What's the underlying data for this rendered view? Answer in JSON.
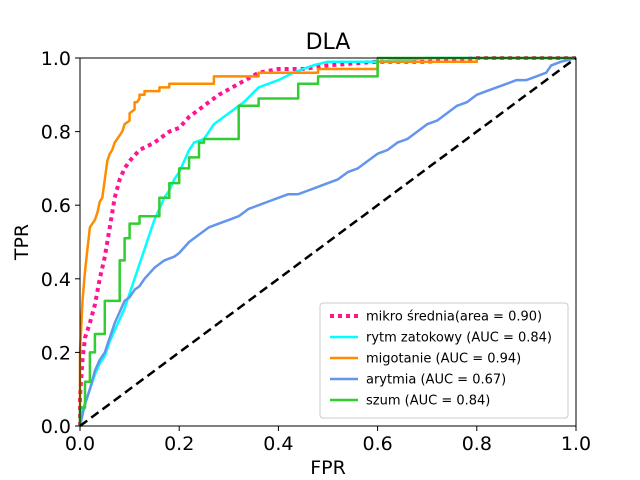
{
  "chart_data": {
    "type": "line",
    "title": "DLA",
    "xlabel": "FPR",
    "ylabel": "TPR",
    "xlim": [
      0.0,
      1.0
    ],
    "ylim": [
      0.0,
      1.0
    ],
    "xticks": [
      "0.0",
      "0.2",
      "0.4",
      "0.6",
      "0.8",
      "1.0"
    ],
    "yticks": [
      "0.0",
      "0.2",
      "0.4",
      "0.6",
      "0.8",
      "1.0"
    ],
    "grid": false,
    "legend_position": "lower-right",
    "series": [
      {
        "name": "mikro średnia(area = 0.90)",
        "color": "#ff1493",
        "style": "dotted",
        "points": [
          [
            0,
            0
          ],
          [
            0,
            0.08
          ],
          [
            0.005,
            0.18
          ],
          [
            0.01,
            0.24
          ],
          [
            0.02,
            0.28
          ],
          [
            0.03,
            0.33
          ],
          [
            0.04,
            0.4
          ],
          [
            0.05,
            0.46
          ],
          [
            0.06,
            0.54
          ],
          [
            0.07,
            0.62
          ],
          [
            0.08,
            0.67
          ],
          [
            0.09,
            0.7
          ],
          [
            0.1,
            0.72
          ],
          [
            0.12,
            0.75
          ],
          [
            0.15,
            0.77
          ],
          [
            0.18,
            0.8
          ],
          [
            0.2,
            0.81
          ],
          [
            0.22,
            0.84
          ],
          [
            0.25,
            0.87
          ],
          [
            0.28,
            0.9
          ],
          [
            0.32,
            0.93
          ],
          [
            0.36,
            0.96
          ],
          [
            0.4,
            0.97
          ],
          [
            0.45,
            0.97
          ],
          [
            0.5,
            0.98
          ],
          [
            0.55,
            0.985
          ],
          [
            0.6,
            0.99
          ],
          [
            0.7,
            0.99
          ],
          [
            0.8,
            1.0
          ],
          [
            0.9,
            1.0
          ],
          [
            1.0,
            1.0
          ]
        ]
      },
      {
        "name": "rytm zatokowy (AUC = 0.84)",
        "color": "#00ffff",
        "style": "solid",
        "points": [
          [
            0,
            0
          ],
          [
            0,
            0.03
          ],
          [
            0.01,
            0.06
          ],
          [
            0.02,
            0.1
          ],
          [
            0.03,
            0.14
          ],
          [
            0.04,
            0.17
          ],
          [
            0.05,
            0.19
          ],
          [
            0.06,
            0.23
          ],
          [
            0.07,
            0.26
          ],
          [
            0.08,
            0.29
          ],
          [
            0.09,
            0.32
          ],
          [
            0.1,
            0.36
          ],
          [
            0.11,
            0.4
          ],
          [
            0.12,
            0.44
          ],
          [
            0.13,
            0.48
          ],
          [
            0.14,
            0.52
          ],
          [
            0.15,
            0.56
          ],
          [
            0.16,
            0.59
          ],
          [
            0.17,
            0.62
          ],
          [
            0.18,
            0.64
          ],
          [
            0.19,
            0.67
          ],
          [
            0.2,
            0.69
          ],
          [
            0.21,
            0.72
          ],
          [
            0.22,
            0.75
          ],
          [
            0.23,
            0.77
          ],
          [
            0.25,
            0.78
          ],
          [
            0.27,
            0.82
          ],
          [
            0.29,
            0.84
          ],
          [
            0.31,
            0.86
          ],
          [
            0.33,
            0.88
          ],
          [
            0.36,
            0.92
          ],
          [
            0.4,
            0.94
          ],
          [
            0.43,
            0.96
          ],
          [
            0.47,
            0.98
          ],
          [
            0.5,
            0.99
          ],
          [
            0.6,
            0.99
          ],
          [
            0.7,
            1.0
          ],
          [
            1.0,
            1.0
          ]
        ]
      },
      {
        "name": "migotanie (AUC = 0.94)",
        "color": "#ff8c00",
        "style": "solid",
        "points": [
          [
            0,
            0
          ],
          [
            0,
            0.2
          ],
          [
            0.005,
            0.34
          ],
          [
            0.01,
            0.42
          ],
          [
            0.015,
            0.48
          ],
          [
            0.02,
            0.54
          ],
          [
            0.025,
            0.55
          ],
          [
            0.03,
            0.56
          ],
          [
            0.035,
            0.58
          ],
          [
            0.04,
            0.61
          ],
          [
            0.045,
            0.62
          ],
          [
            0.05,
            0.67
          ],
          [
            0.055,
            0.72
          ],
          [
            0.06,
            0.74
          ],
          [
            0.065,
            0.75
          ],
          [
            0.07,
            0.77
          ],
          [
            0.075,
            0.78
          ],
          [
            0.08,
            0.79
          ],
          [
            0.085,
            0.8
          ],
          [
            0.09,
            0.82
          ],
          [
            0.1,
            0.83
          ],
          [
            0.1,
            0.85
          ],
          [
            0.11,
            0.86
          ],
          [
            0.11,
            0.88
          ],
          [
            0.115,
            0.88
          ],
          [
            0.12,
            0.89
          ],
          [
            0.12,
            0.9
          ],
          [
            0.13,
            0.9
          ],
          [
            0.13,
            0.91
          ],
          [
            0.16,
            0.91
          ],
          [
            0.16,
            0.92
          ],
          [
            0.18,
            0.92
          ],
          [
            0.18,
            0.93
          ],
          [
            0.27,
            0.93
          ],
          [
            0.27,
            0.95
          ],
          [
            0.36,
            0.95
          ],
          [
            0.36,
            0.96
          ],
          [
            0.48,
            0.96
          ],
          [
            0.48,
            0.97
          ],
          [
            0.6,
            0.97
          ],
          [
            0.6,
            0.99
          ],
          [
            0.8,
            0.99
          ],
          [
            0.8,
            1.0
          ],
          [
            1.0,
            1.0
          ]
        ]
      },
      {
        "name": "arytmia (AUC = 0.67)",
        "color": "#6495ed",
        "style": "solid",
        "points": [
          [
            0,
            0
          ],
          [
            0.01,
            0.06
          ],
          [
            0.02,
            0.1
          ],
          [
            0.03,
            0.15
          ],
          [
            0.04,
            0.18
          ],
          [
            0.05,
            0.2
          ],
          [
            0.06,
            0.24
          ],
          [
            0.07,
            0.28
          ],
          [
            0.08,
            0.31
          ],
          [
            0.09,
            0.34
          ],
          [
            0.1,
            0.35
          ],
          [
            0.11,
            0.37
          ],
          [
            0.12,
            0.38
          ],
          [
            0.13,
            0.4
          ],
          [
            0.15,
            0.43
          ],
          [
            0.17,
            0.45
          ],
          [
            0.19,
            0.46
          ],
          [
            0.2,
            0.47
          ],
          [
            0.22,
            0.5
          ],
          [
            0.24,
            0.52
          ],
          [
            0.26,
            0.54
          ],
          [
            0.28,
            0.55
          ],
          [
            0.3,
            0.56
          ],
          [
            0.32,
            0.57
          ],
          [
            0.34,
            0.59
          ],
          [
            0.36,
            0.6
          ],
          [
            0.38,
            0.61
          ],
          [
            0.4,
            0.62
          ],
          [
            0.42,
            0.63
          ],
          [
            0.44,
            0.63
          ],
          [
            0.46,
            0.64
          ],
          [
            0.48,
            0.65
          ],
          [
            0.5,
            0.66
          ],
          [
            0.52,
            0.67
          ],
          [
            0.54,
            0.69
          ],
          [
            0.56,
            0.7
          ],
          [
            0.58,
            0.72
          ],
          [
            0.6,
            0.74
          ],
          [
            0.62,
            0.75
          ],
          [
            0.64,
            0.77
          ],
          [
            0.66,
            0.78
          ],
          [
            0.68,
            0.8
          ],
          [
            0.7,
            0.82
          ],
          [
            0.72,
            0.83
          ],
          [
            0.74,
            0.85
          ],
          [
            0.76,
            0.87
          ],
          [
            0.78,
            0.88
          ],
          [
            0.8,
            0.9
          ],
          [
            0.82,
            0.91
          ],
          [
            0.84,
            0.92
          ],
          [
            0.86,
            0.93
          ],
          [
            0.88,
            0.94
          ],
          [
            0.9,
            0.94
          ],
          [
            0.92,
            0.95
          ],
          [
            0.94,
            0.96
          ],
          [
            0.95,
            0.98
          ],
          [
            0.97,
            0.99
          ],
          [
            1.0,
            1.0
          ]
        ]
      },
      {
        "name": "szum (AUC = 0.84)",
        "color": "#32cd32",
        "style": "solid",
        "points": [
          [
            0,
            0
          ],
          [
            0,
            0.05
          ],
          [
            0.01,
            0.05
          ],
          [
            0.01,
            0.12
          ],
          [
            0.02,
            0.12
          ],
          [
            0.02,
            0.2
          ],
          [
            0.03,
            0.2
          ],
          [
            0.03,
            0.25
          ],
          [
            0.05,
            0.25
          ],
          [
            0.05,
            0.34
          ],
          [
            0.08,
            0.34
          ],
          [
            0.08,
            0.45
          ],
          [
            0.09,
            0.45
          ],
          [
            0.09,
            0.51
          ],
          [
            0.1,
            0.51
          ],
          [
            0.1,
            0.55
          ],
          [
            0.12,
            0.55
          ],
          [
            0.12,
            0.57
          ],
          [
            0.16,
            0.57
          ],
          [
            0.16,
            0.62
          ],
          [
            0.18,
            0.62
          ],
          [
            0.18,
            0.66
          ],
          [
            0.2,
            0.66
          ],
          [
            0.2,
            0.7
          ],
          [
            0.22,
            0.7
          ],
          [
            0.22,
            0.73
          ],
          [
            0.24,
            0.73
          ],
          [
            0.24,
            0.77
          ],
          [
            0.25,
            0.77
          ],
          [
            0.25,
            0.78
          ],
          [
            0.32,
            0.78
          ],
          [
            0.32,
            0.87
          ],
          [
            0.36,
            0.87
          ],
          [
            0.36,
            0.89
          ],
          [
            0.44,
            0.89
          ],
          [
            0.44,
            0.93
          ],
          [
            0.48,
            0.93
          ],
          [
            0.48,
            0.95
          ],
          [
            0.6,
            0.95
          ],
          [
            0.6,
            1.0
          ],
          [
            1.0,
            1.0
          ]
        ]
      },
      {
        "name": "",
        "color": "#000000",
        "style": "dashed",
        "points": [
          [
            0,
            0
          ],
          [
            1,
            1
          ]
        ]
      }
    ]
  }
}
